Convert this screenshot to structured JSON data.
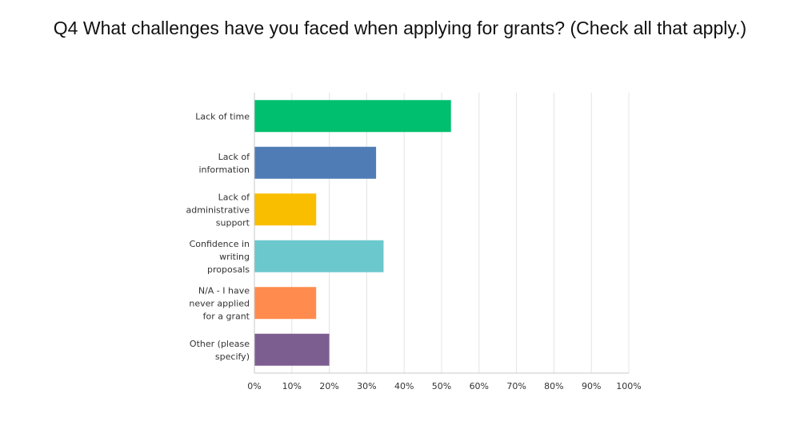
{
  "chart_data": {
    "type": "bar",
    "orientation": "horizontal",
    "title": "Q4 What challenges have you faced when applying for grants? (Check all that apply.)",
    "categories": [
      [
        "Lack of time"
      ],
      [
        "Lack of",
        "information"
      ],
      [
        "Lack of",
        "administrative",
        "support"
      ],
      [
        "Confidence in",
        "writing",
        "proposals"
      ],
      [
        "N/A - I have",
        "never applied",
        "for a grant"
      ],
      [
        "Other (please",
        "specify)"
      ]
    ],
    "values": [
      52.5,
      32.5,
      16.5,
      34.5,
      16.5,
      20.0
    ],
    "colors": [
      "#00bf6f",
      "#507cb6",
      "#f9be00",
      "#6bc8cd",
      "#ff8b4f",
      "#7d5e90"
    ],
    "xlim": [
      0,
      100
    ],
    "xticks": [
      "0%",
      "10%",
      "20%",
      "30%",
      "40%",
      "50%",
      "60%",
      "70%",
      "80%",
      "90%",
      "100%"
    ],
    "grid": true,
    "xlabel": "",
    "ylabel": ""
  }
}
